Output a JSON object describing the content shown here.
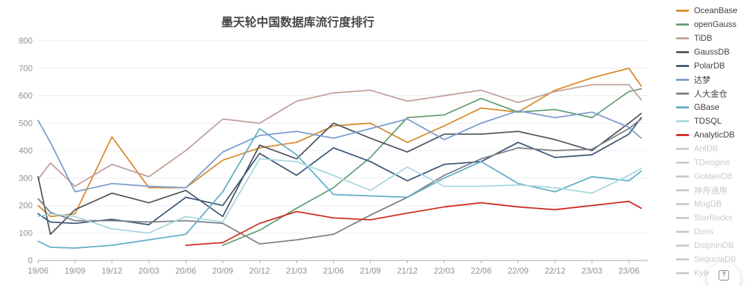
{
  "page": {
    "title": "墨天轮中国数据库流行度排行"
  },
  "help_button": {
    "glyph": "?"
  },
  "axis_colors": {
    "grid": "#e9eef5",
    "axis_line": "#a2a6ad",
    "tick_label": "#8b909a"
  },
  "legend": {
    "disabled_color": "#c6cad2"
  },
  "chart_data": {
    "type": "line",
    "title": "墨天轮中国数据库流行度排行",
    "xlabel": "",
    "ylabel": "",
    "ylim": [
      0,
      800
    ],
    "y_ticks": [
      0,
      100,
      200,
      300,
      400,
      500,
      600,
      700,
      800
    ],
    "grid": true,
    "legend_position": "right",
    "x_axis": {
      "unit": "year/month",
      "tick_labels": [
        "19/06",
        "19/09",
        "19/12",
        "20/03",
        "20/06",
        "20/09",
        "20/12",
        "21/03",
        "21/06",
        "21/09",
        "21/12",
        "22/03",
        "22/06",
        "22/09",
        "22/12",
        "23/03",
        "23/06"
      ],
      "tick_months": [
        0,
        3,
        6,
        9,
        12,
        15,
        18,
        21,
        24,
        27,
        30,
        33,
        36,
        39,
        42,
        45,
        48
      ]
    },
    "sample_months": [
      0,
      1,
      3,
      6,
      9,
      12,
      15,
      18,
      21,
      24,
      27,
      30,
      33,
      36,
      39,
      42,
      45,
      48,
      49
    ],
    "series": [
      {
        "name": "OceanBase",
        "color": "#d98b2e",
        "values": [
          200,
          160,
          170,
          450,
          265,
          265,
          365,
          410,
          430,
          490,
          500,
          430,
          490,
          555,
          540,
          620,
          665,
          700,
          635
        ]
      },
      {
        "name": "openGauss",
        "color": "#689f77",
        "values": [
          null,
          null,
          null,
          null,
          null,
          null,
          55,
          110,
          190,
          265,
          375,
          520,
          530,
          590,
          540,
          550,
          520,
          615,
          625
        ]
      },
      {
        "name": "TiDB",
        "color": "#c2a099",
        "values": [
          295,
          355,
          270,
          350,
          305,
          400,
          515,
          500,
          580,
          610,
          620,
          580,
          600,
          620,
          575,
          615,
          640,
          640,
          585
        ]
      },
      {
        "name": "GaussDB",
        "color": "#515761",
        "values": [
          305,
          95,
          185,
          245,
          210,
          255,
          160,
          420,
          370,
          500,
          445,
          395,
          460,
          460,
          470,
          440,
          400,
          500,
          535
        ]
      },
      {
        "name": "PolarDB",
        "color": "#3f5a78",
        "values": [
          170,
          140,
          135,
          150,
          130,
          230,
          200,
          390,
          310,
          410,
          360,
          290,
          350,
          360,
          430,
          375,
          385,
          460,
          520
        ]
      },
      {
        "name": "达梦",
        "color": "#7c9dce",
        "values": [
          510,
          430,
          250,
          280,
          270,
          265,
          395,
          455,
          470,
          445,
          480,
          515,
          440,
          500,
          545,
          520,
          540,
          485,
          445
        ]
      },
      {
        "name": "人大金仓",
        "color": "#7d8088",
        "values": [
          225,
          175,
          145,
          145,
          140,
          145,
          135,
          60,
          75,
          95,
          165,
          230,
          310,
          370,
          410,
          400,
          405,
          480,
          515
        ]
      },
      {
        "name": "GBase",
        "color": "#64aec6",
        "values": [
          70,
          48,
          45,
          55,
          75,
          95,
          250,
          480,
          385,
          240,
          235,
          230,
          300,
          360,
          280,
          250,
          305,
          290,
          325
        ]
      },
      {
        "name": "TDSQL",
        "color": "#a8d8df",
        "values": [
          160,
          170,
          160,
          115,
          100,
          160,
          140,
          370,
          360,
          310,
          255,
          340,
          270,
          270,
          275,
          265,
          245,
          310,
          335
        ]
      },
      {
        "name": "AnalyticDB",
        "color": "#cf2f25",
        "values": [
          null,
          null,
          null,
          null,
          null,
          55,
          65,
          135,
          178,
          155,
          148,
          172,
          195,
          210,
          195,
          185,
          200,
          215,
          190
        ]
      }
    ],
    "disabled_series": [
      {
        "name": "AntDB"
      },
      {
        "name": "TDengine"
      },
      {
        "name": "GoldenDB"
      },
      {
        "name": "神舟通用"
      },
      {
        "name": "MogDB"
      },
      {
        "name": "StarRocks"
      },
      {
        "name": "Doris"
      },
      {
        "name": "DolphinDB"
      },
      {
        "name": "SequoiaDB"
      },
      {
        "name": "Kyligence"
      }
    ]
  }
}
